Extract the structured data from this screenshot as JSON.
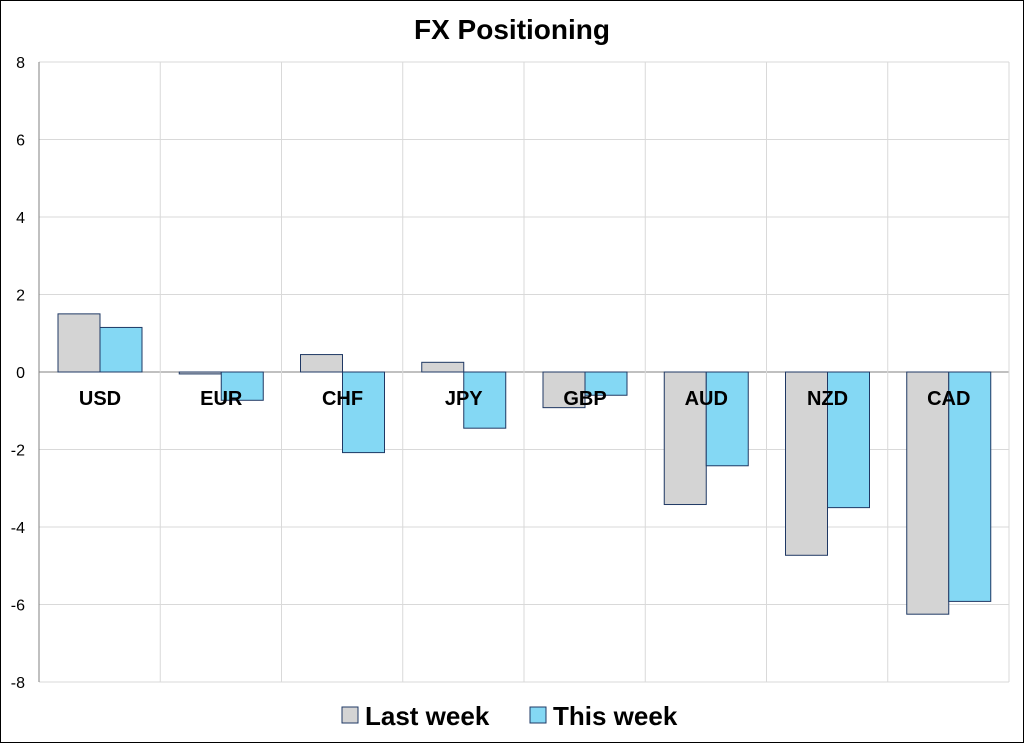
{
  "chart_data": {
    "type": "bar",
    "title": "FX Positioning",
    "xlabel": "",
    "ylabel": "",
    "categories": [
      "USD",
      "EUR",
      "CHF",
      "JPY",
      "GBP",
      "AUD",
      "NZD",
      "CAD"
    ],
    "series": [
      {
        "name": "Last week",
        "color": "#d4d4d4",
        "values": [
          1.5,
          -0.05,
          0.45,
          0.25,
          -0.92,
          -3.42,
          -4.73,
          -6.25
        ]
      },
      {
        "name": "This week",
        "color": "#84d8f4",
        "values": [
          1.15,
          -0.73,
          -2.08,
          -1.45,
          -0.6,
          -2.42,
          -3.5,
          -5.92
        ]
      }
    ],
    "ylim": [
      -8,
      8
    ],
    "yticks": [
      "-8",
      "-6",
      "-4",
      "-2",
      "0",
      "2",
      "4",
      "6",
      "8"
    ],
    "grid": true,
    "legend": "bottom",
    "bar_edge_color": "#1f3864"
  }
}
